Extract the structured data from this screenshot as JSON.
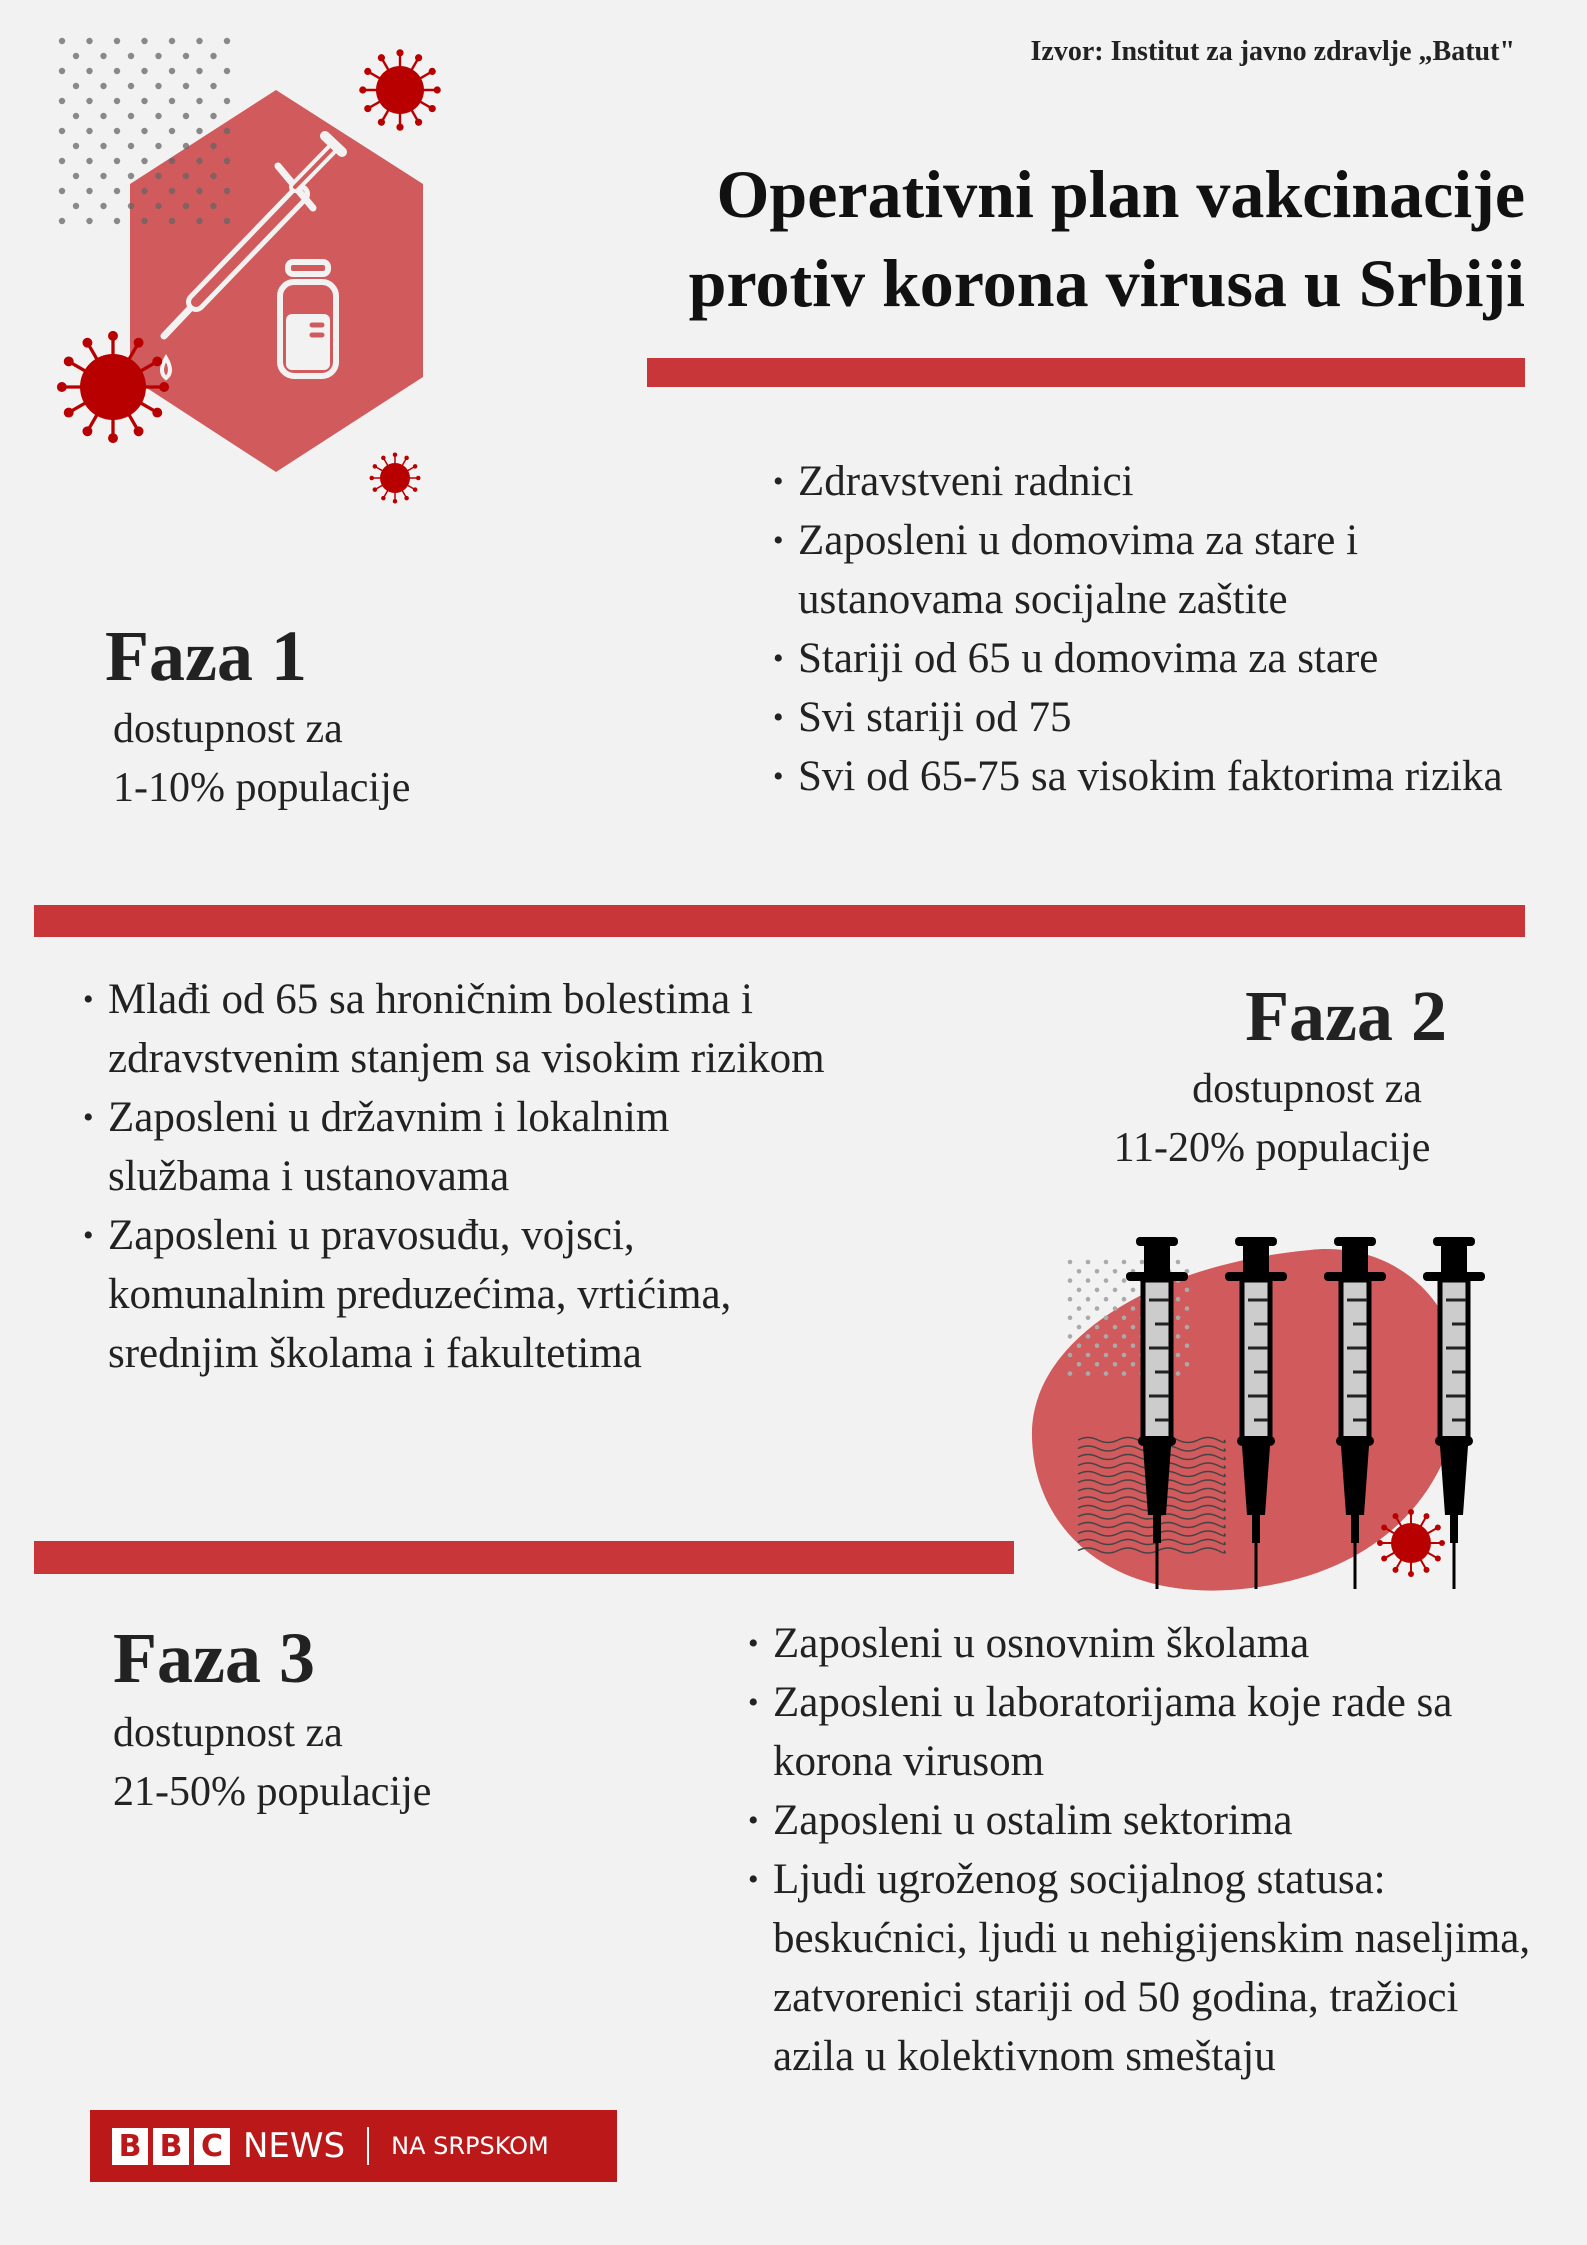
{
  "source": "Izvor: Institut za javno zdravlje „Batut\"",
  "title": {
    "line1": "Operativni plan vakcinacije",
    "line2": "protiv korona virusa u Srbiji"
  },
  "colors": {
    "accent_bar": "#c8363a",
    "illustration_red": "#d05a5c",
    "virus_red": "#b80000",
    "bbc_red": "#bb1919",
    "background": "#f2f2f2"
  },
  "phases": [
    {
      "title": "Faza 1",
      "sub1": "dostupnost za",
      "sub2": "1-10% populacije",
      "items": [
        "Zdravstveni radnici",
        "Zaposleni u domovima za stare i ustanovama socijalne zaštite",
        "Stariji od 65 u domovima za stare",
        "Svi stariji od 75",
        "Svi od 65-75 sa visokim faktorima rizika"
      ]
    },
    {
      "title": "Faza 2",
      "sub1": "dostupnost za",
      "sub2": "11-20% populacije",
      "items": [
        "Mlađi od 65 sa hroničnim bolestima i zdravstvenim stanjem sa visokim rizikom",
        "Zaposleni u državnim i lokalnim službama i ustanovama",
        "Zaposleni u pravosuđu, vojsci, komunalnim preduzećima, vrtićima, srednjim školama i fakultetima"
      ]
    },
    {
      "title": "Faza 3",
      "sub1": "dostupnost za",
      "sub2": "21-50% populacije",
      "items": [
        "Zaposleni u osnovnim školama",
        "Zaposleni u laboratorijama koje rade sa korona virusom",
        "Zaposleni u ostalim sektorima",
        "Ljudi ugroženog socijalnog statusa: beskućnici, ljudi u nehigijenskim naseljima, zatvorenici stariji od 50 godina, tražioci azila u kolektivnom smeštaju"
      ]
    }
  ],
  "logo": {
    "bbc": [
      "B",
      "B",
      "C"
    ],
    "news": "NEWS",
    "lang": "NA SRPSKOM"
  },
  "icons": [
    "virus-icon",
    "syringe-icon",
    "vial-icon",
    "hexagon-shape",
    "dot-pattern"
  ]
}
